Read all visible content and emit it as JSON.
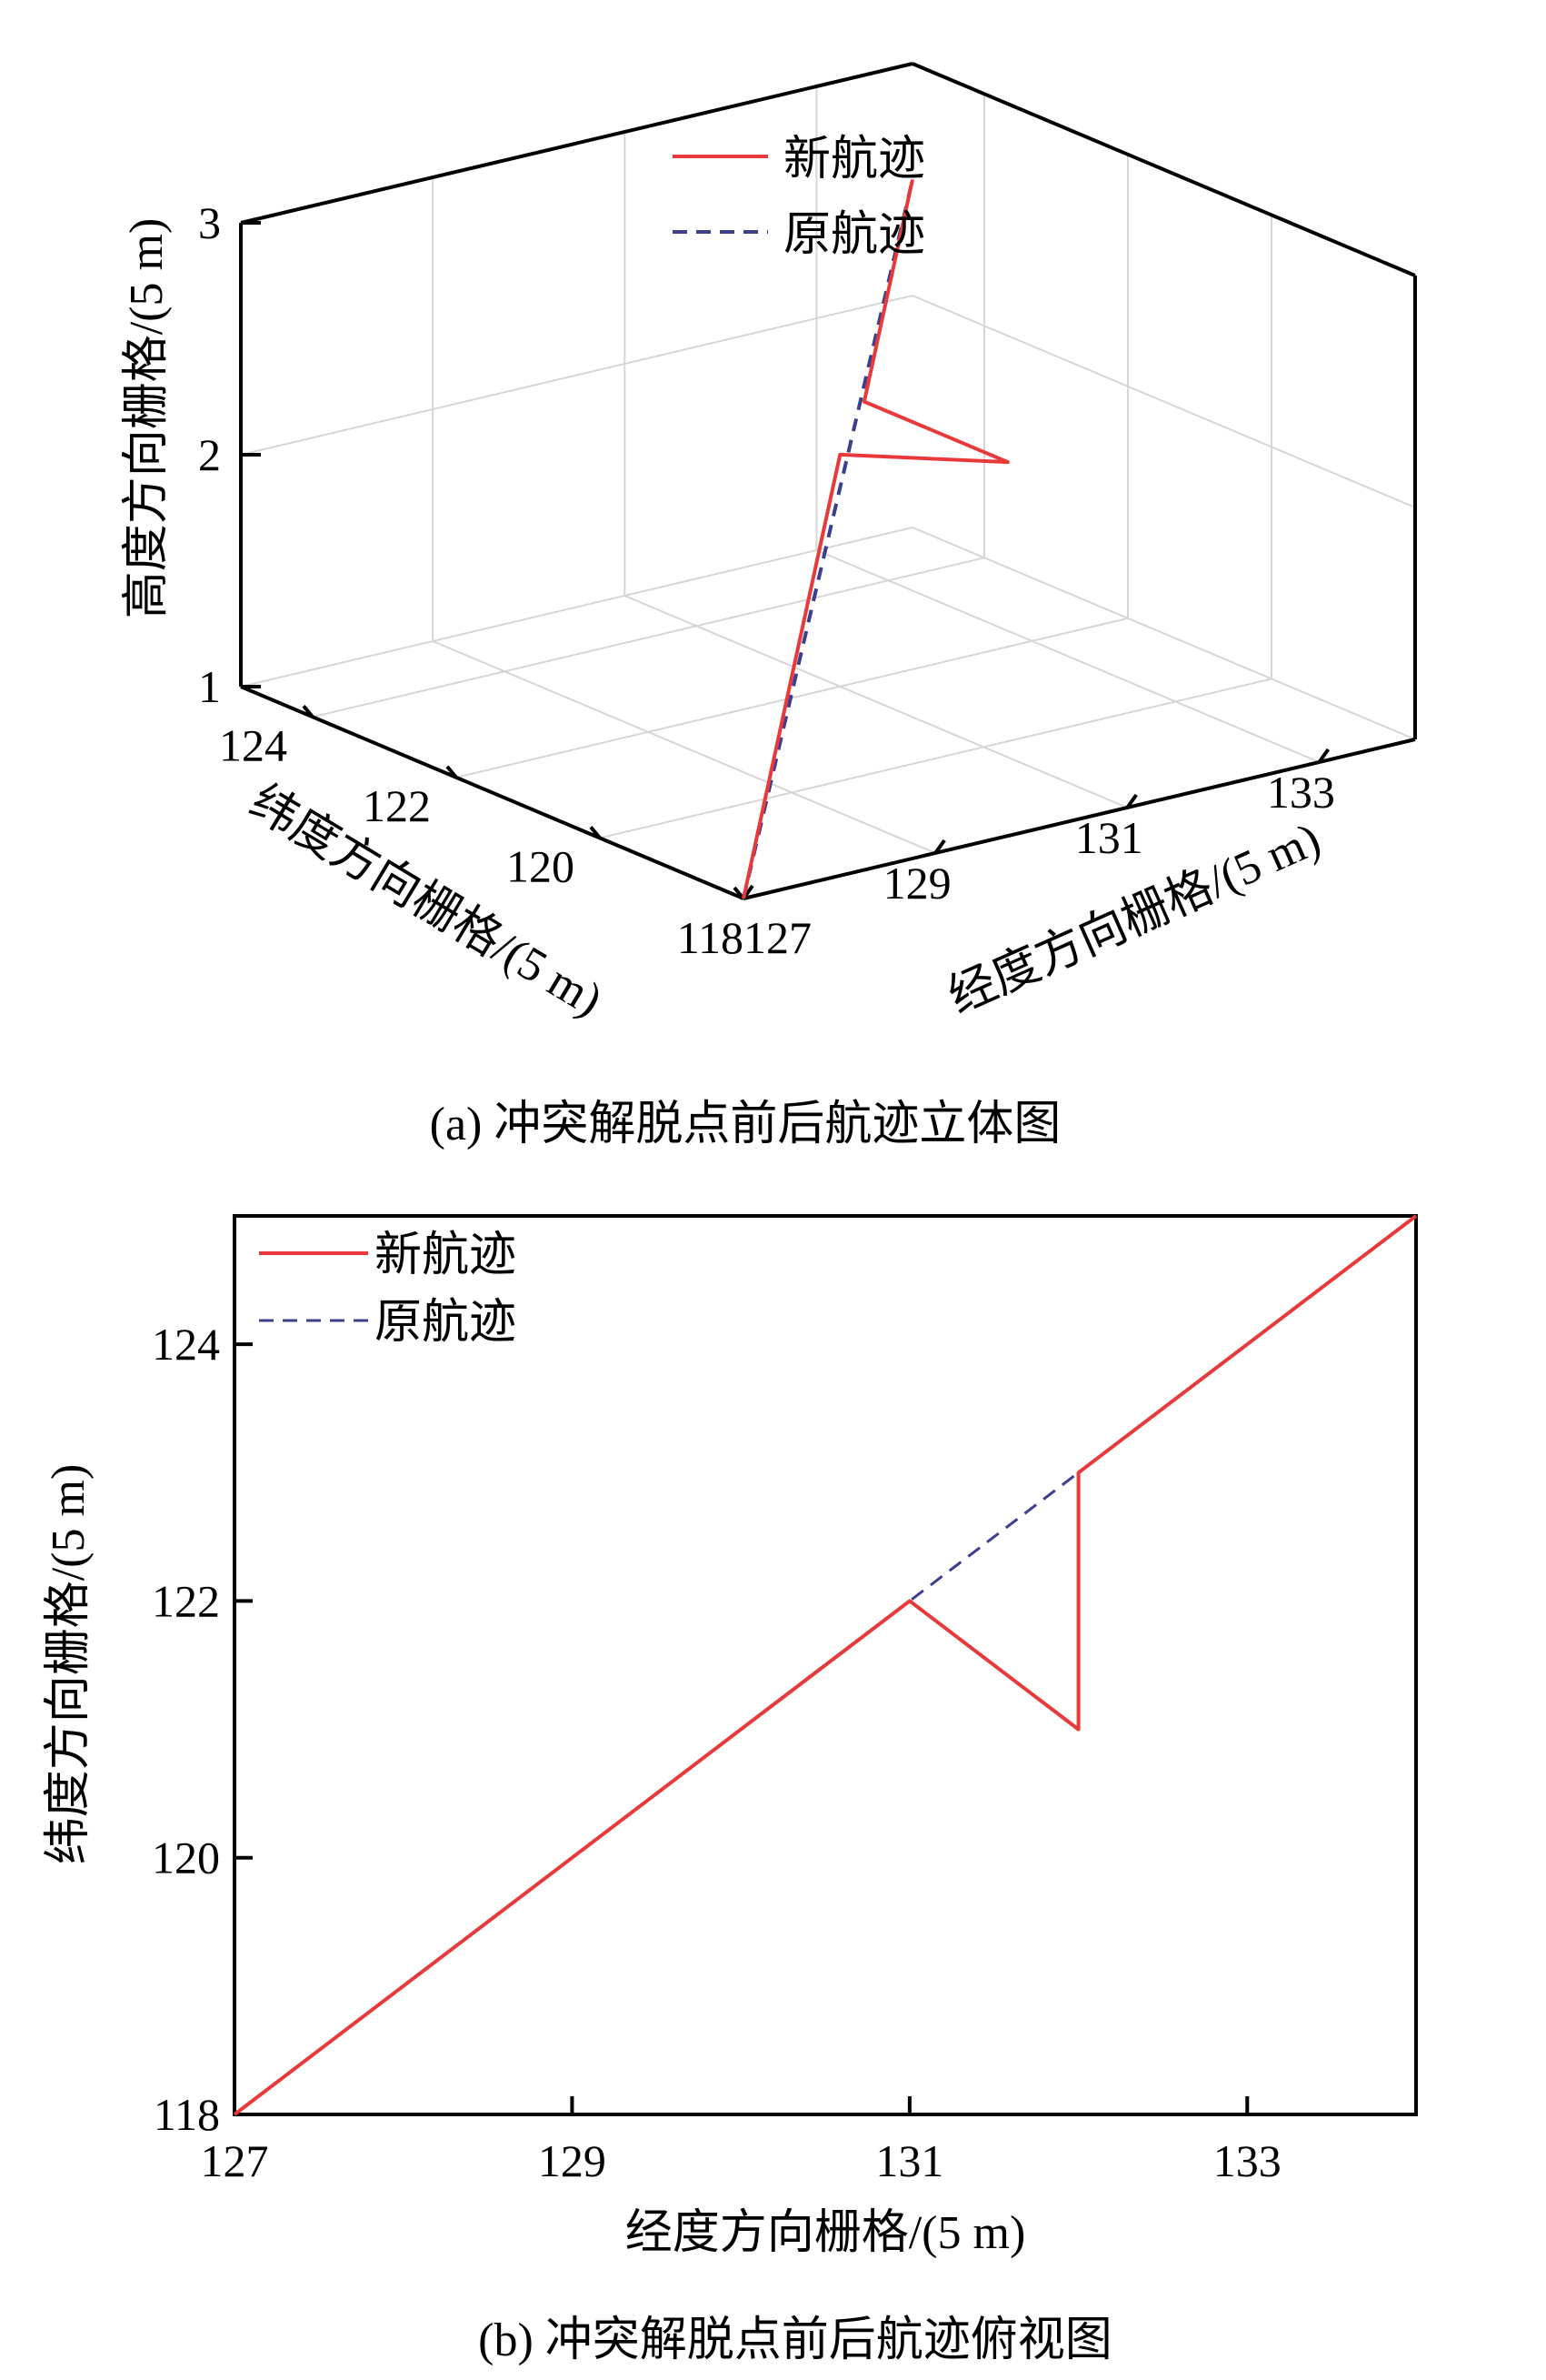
{
  "chart_data": [
    {
      "type": "line",
      "projection": "3d",
      "caption": "(a) 冲突解脱点前后航迹立体图",
      "xlabel": "经度方向栅格/(5 m)",
      "ylabel": "纬度方向栅格/(5 m)",
      "zlabel": "高度方向栅格/(5 m)",
      "xlim": [
        127,
        134
      ],
      "ylim": [
        118,
        125
      ],
      "zlim": [
        1,
        3
      ],
      "x_ticks": [
        "127",
        "129",
        "131",
        "133"
      ],
      "y_ticks": [
        "118",
        "120",
        "122",
        "124"
      ],
      "z_ticks": [
        "1",
        "2",
        "3"
      ],
      "grid": true,
      "legend_position": "top-center",
      "colors": {
        "new": "#e8393b",
        "old": "#3b3f8c"
      },
      "series": [
        {
          "name": "新航迹",
          "style": "solid",
          "points": [
            [
              127,
              118,
              1
            ],
            [
              131,
              122,
              2
            ],
            [
              132,
              121,
              2
            ],
            [
              132,
              123,
              2
            ],
            [
              134,
              125,
              2.5
            ]
          ]
        },
        {
          "name": "原航迹",
          "style": "dashed",
          "points": [
            [
              127,
              118,
              1
            ],
            [
              134,
              125,
              2.5
            ]
          ]
        }
      ]
    },
    {
      "type": "line",
      "caption": "(b) 冲突解脱点前后航迹俯视图",
      "xlabel": "经度方向栅格/(5 m)",
      "ylabel": "纬度方向栅格/(5 m)",
      "xlim": [
        127,
        134
      ],
      "ylim": [
        118,
        125
      ],
      "x_ticks": [
        "127",
        "129",
        "131",
        "133"
      ],
      "y_ticks": [
        "118",
        "120",
        "122",
        "124"
      ],
      "grid": false,
      "legend_position": "top-left",
      "colors": {
        "new": "#e8393b",
        "old": "#3b3f8c"
      },
      "series": [
        {
          "name": "新航迹",
          "style": "solid",
          "points": [
            [
              127,
              118
            ],
            [
              131,
              122
            ],
            [
              132,
              121
            ],
            [
              132,
              123
            ],
            [
              134,
              125
            ]
          ]
        },
        {
          "name": "原航迹",
          "style": "dashed",
          "points": [
            [
              127,
              118
            ],
            [
              134,
              125
            ]
          ]
        }
      ]
    }
  ]
}
